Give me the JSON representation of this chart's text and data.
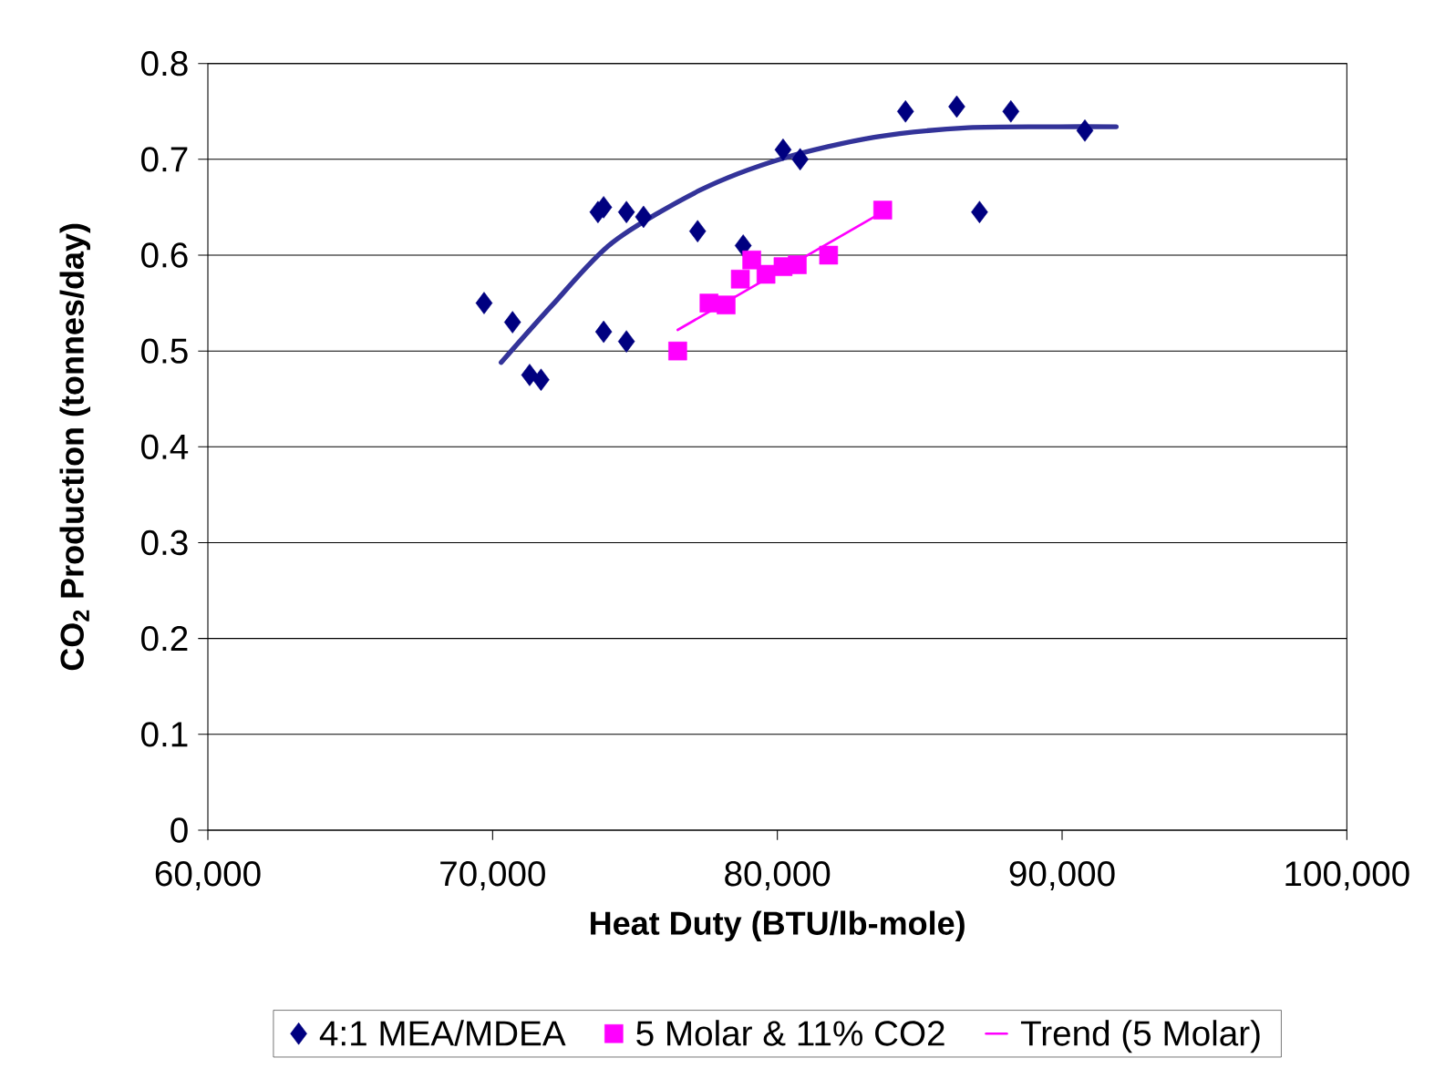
{
  "chart_data": {
    "type": "scatter",
    "xlabel": "Heat Duty (BTU/lb-mole)",
    "ylabel": "CO$_{2}$ Production (tonnes/day)",
    "xlim": [
      60000,
      100000
    ],
    "ylim": [
      0,
      0.8
    ],
    "xticks": [
      {
        "value": 60000,
        "label": "60,000"
      },
      {
        "value": 70000,
        "label": "70,000"
      },
      {
        "value": 80000,
        "label": "80,000"
      },
      {
        "value": 90000,
        "label": "90,000"
      },
      {
        "value": 100000,
        "label": "100,000"
      }
    ],
    "yticks": [
      0,
      0.1,
      0.2,
      0.3,
      0.4,
      0.5,
      0.6,
      0.7,
      0.8
    ],
    "grid": "y",
    "legend": "bottom",
    "series": [
      {
        "name": "4:1 MEA/MDEA",
        "type": "scatter",
        "marker": "diamond",
        "color": "#000080",
        "x": [
          69700,
          70700,
          71300,
          71700,
          73700,
          73900,
          73900,
          74700,
          74700,
          75300,
          77200,
          78800,
          80200,
          80800,
          84500,
          86300,
          87100,
          88200,
          90800
        ],
        "values": [
          0.55,
          0.53,
          0.475,
          0.47,
          0.645,
          0.65,
          0.52,
          0.645,
          0.51,
          0.64,
          0.625,
          0.61,
          0.71,
          0.7,
          0.75,
          0.755,
          0.645,
          0.75,
          0.73
        ]
      },
      {
        "name": "5 Molar & 11% CO2",
        "type": "scatter",
        "marker": "square",
        "color": "#ff00ff",
        "x": [
          76500,
          77600,
          78200,
          78700,
          79100,
          79600,
          80200,
          80700,
          81800,
          83700
        ],
        "values": [
          0.5,
          0.55,
          0.548,
          0.575,
          0.595,
          0.58,
          0.588,
          0.59,
          0.6,
          0.647
        ]
      },
      {
        "name": "Trend (5 Molar)",
        "type": "line",
        "marker": "none",
        "color": "#ff00ff",
        "x": [
          76500,
          83700
        ],
        "values": [
          0.522,
          0.645
        ]
      },
      {
        "type": "line",
        "marker": "none",
        "color": "#333399",
        "x": [
          70300,
          72100,
          74200,
          77300,
          80200,
          83400,
          86700,
          89900,
          91900
        ],
        "values": [
          0.488,
          0.548,
          0.613,
          0.668,
          0.701,
          0.723,
          0.733,
          0.734,
          0.734
        ]
      }
    ]
  }
}
